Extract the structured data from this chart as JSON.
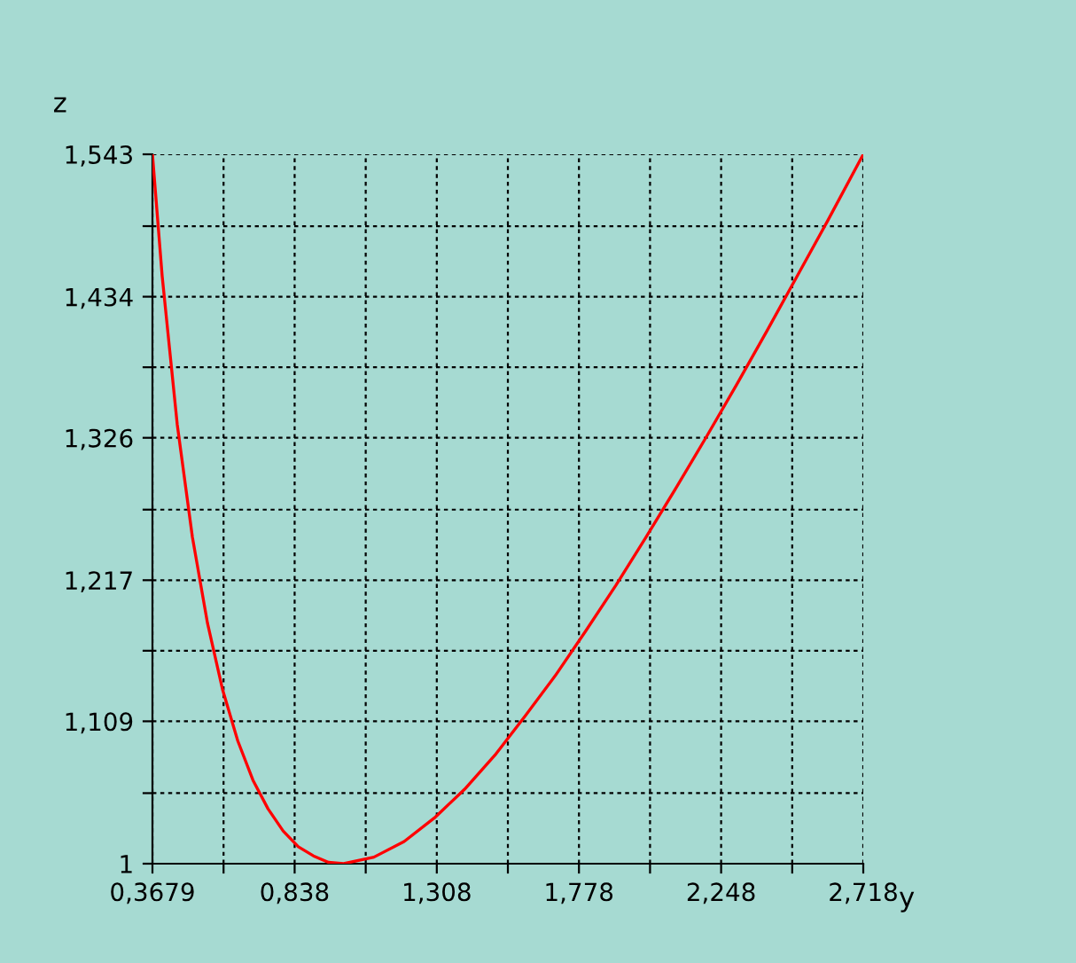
{
  "chart_data": {
    "type": "line",
    "xlabel": "y",
    "ylabel": "z",
    "x": [
      0.3679,
      0.4,
      0.45,
      0.5,
      0.55,
      0.6,
      0.65,
      0.7,
      0.75,
      0.8,
      0.85,
      0.9,
      0.95,
      1.0,
      1.1,
      1.2,
      1.3,
      1.4,
      1.5,
      1.6,
      1.7,
      1.8,
      1.9,
      2.0,
      2.1,
      2.2,
      2.3,
      2.4,
      2.5,
      2.6,
      2.718
    ],
    "series": [
      {
        "color": "#ff0000",
        "values": [
          1.543,
          1.45,
          1.336,
          1.25,
          1.184,
          1.133,
          1.094,
          1.064,
          1.042,
          1.025,
          1.013,
          1.006,
          1.001,
          1.0,
          1.005,
          1.017,
          1.035,
          1.057,
          1.083,
          1.113,
          1.144,
          1.178,
          1.213,
          1.25,
          1.288,
          1.327,
          1.367,
          1.408,
          1.45,
          1.492,
          1.543
        ]
      }
    ],
    "xlim": [
      0.3679,
      2.718
    ],
    "ylim": [
      1,
      1.543
    ],
    "xticks": [
      {
        "value": 0.3679,
        "label": "0,3679"
      },
      {
        "value": 0.603,
        "label": null
      },
      {
        "value": 0.838,
        "label": "0,838"
      },
      {
        "value": 1.073,
        "label": null
      },
      {
        "value": 1.308,
        "label": "1,308"
      },
      {
        "value": 1.543,
        "label": null
      },
      {
        "value": 1.778,
        "label": "1,778"
      },
      {
        "value": 2.013,
        "label": null
      },
      {
        "value": 2.248,
        "label": "2,248"
      },
      {
        "value": 2.483,
        "label": null
      },
      {
        "value": 2.718,
        "label": "2,718"
      }
    ],
    "yticks": [
      1,
      {
        "value": 1.054,
        "label": null
      },
      {
        "value": 1.109,
        "label": "1,109"
      },
      {
        "value": 1.163,
        "label": null
      },
      {
        "value": 1.217,
        "label": "1,217"
      },
      {
        "value": 1.271,
        "label": null
      },
      {
        "value": 1.326,
        "label": "1,326"
      },
      {
        "value": 1.38,
        "label": null
      },
      {
        "value": 1.434,
        "label": "1,434"
      },
      {
        "value": 1.488,
        "label": null
      },
      {
        "value": 1.543,
        "label": "1,543"
      }
    ],
    "grid": true,
    "line_style": "solid",
    "marker": "none"
  }
}
